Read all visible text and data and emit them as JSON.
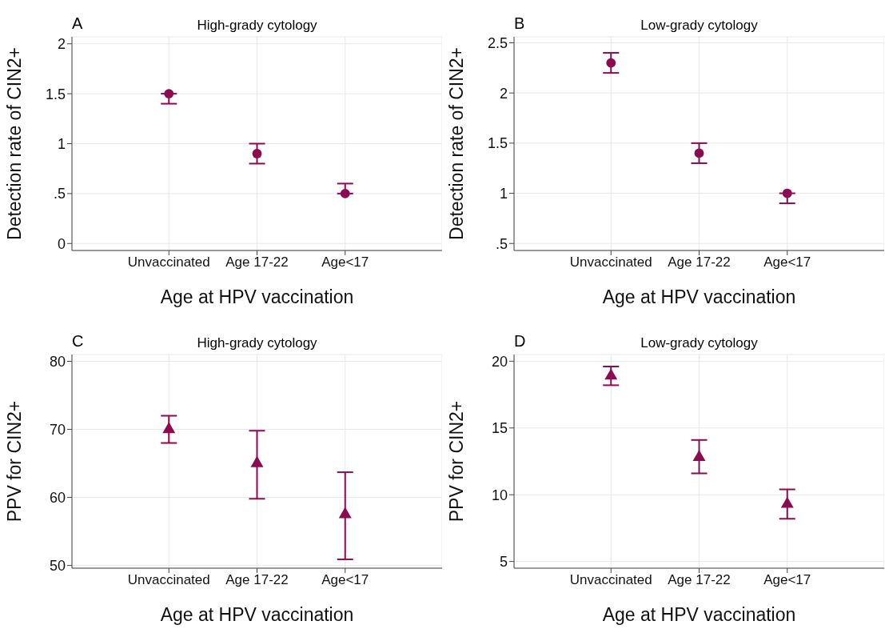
{
  "chart_data": [
    {
      "type": "scatter",
      "title": "High-grady cytology",
      "annotations": [
        "A"
      ],
      "xlabel": "Age at HPV vaccination",
      "ylabel": "Detection rate of CIN2+",
      "categories": [
        "Unvaccinated",
        "Age 17-22",
        "Age<17"
      ],
      "series": [
        {
          "color": "#8b0a50",
          "values": [
            1.5,
            0.9,
            0.5
          ],
          "errors": [
            [
              1.4,
              1.5
            ],
            [
              0.8,
              1.0
            ],
            [
              0.5,
              0.6
            ]
          ]
        }
      ],
      "ylim": [
        -0.07,
        2.07
      ],
      "yticks": [
        0,
        {
          "value": 0.5,
          "label": ".5"
        },
        1,
        1.5,
        2
      ],
      "grid": true,
      "marker": "circle"
    },
    {
      "type": "scatter",
      "title": "Low-grady cytology",
      "annotations": [
        "B"
      ],
      "xlabel": "Age at HPV vaccination",
      "ylabel": "Detection rate of CIN2+",
      "categories": [
        "Unvaccinated",
        "Age 17-22",
        "Age<17"
      ],
      "series": [
        {
          "color": "#8b0a50",
          "values": [
            2.3,
            1.4,
            1.0
          ],
          "errors": [
            [
              2.2,
              2.4
            ],
            [
              1.3,
              1.5
            ],
            [
              0.9,
              1.0
            ]
          ]
        }
      ],
      "ylim": [
        0.43,
        2.56
      ],
      "yticks": [
        {
          "value": 0.5,
          "label": ".5"
        },
        1,
        1.5,
        2,
        2.5
      ],
      "grid": true,
      "marker": "circle"
    },
    {
      "type": "scatter",
      "title": "High-grady cytology",
      "annotations": [
        "C"
      ],
      "xlabel": "Age at HPV vaccination",
      "ylabel": "PPV for CIN2+",
      "categories": [
        "Unvaccinated",
        "Age 17-22",
        "Age<17"
      ],
      "series": [
        {
          "color": "#8b0a50",
          "values": [
            70,
            65,
            57.5
          ],
          "errors": [
            [
              68,
              72
            ],
            [
              59.8,
              69.8
            ],
            [
              50.9,
              63.7
            ]
          ]
        }
      ],
      "ylim": [
        49.6,
        81
      ],
      "yticks": [
        50,
        60,
        70,
        80
      ],
      "grid": true,
      "marker": "triangle"
    },
    {
      "type": "scatter",
      "title": "Low-grady cytology",
      "annotations": [
        "D"
      ],
      "xlabel": "Age at HPV vaccination",
      "ylabel": "PPV for CIN2+",
      "categories": [
        "Unvaccinated",
        "Age 17-22",
        "Age<17"
      ],
      "series": [
        {
          "color": "#8b0a50",
          "values": [
            18.9,
            12.8,
            9.3
          ],
          "errors": [
            [
              18.2,
              19.6
            ],
            [
              11.6,
              14.1
            ],
            [
              8.2,
              10.4
            ]
          ]
        }
      ],
      "ylim": [
        4.5,
        20.5
      ],
      "yticks": [
        5,
        10,
        15,
        20
      ],
      "grid": true,
      "marker": "triangle"
    }
  ]
}
